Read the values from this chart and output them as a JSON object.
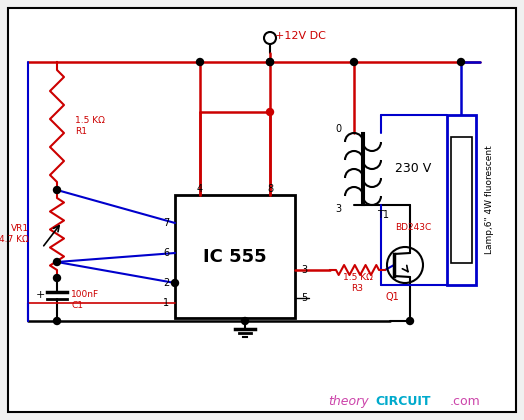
{
  "bg": "#f0f0f0",
  "white": "#ffffff",
  "red": "#cc0000",
  "blue": "#0000cc",
  "dark_red": "#800000",
  "black": "#000000",
  "magenta": "#cc44aa",
  "cyan": "#00aacc",
  "r1_label": "1.5 KΩ\nR1",
  "r3_label": "1.5 KΩ\nR3",
  "vr1_label": "VR1\n4.7 KΩ",
  "c1_label": "100nF\nC1",
  "ic_label": "IC 555",
  "lamp_label": "Lamp,6\" 4W fluorescent",
  "v230": "230 V",
  "t1": "T1",
  "bd": "BD243C",
  "q1": "Q1",
  "pwr": "+12V DC",
  "theory": "theory",
  "circuit": "CIRCUIT",
  "com": ".com",
  "pin4": "4",
  "pin8": "8",
  "pin7": "7",
  "pin6": "6",
  "pin2": "2",
  "pin1": "1",
  "pin3": "3",
  "pin5": "5",
  "t1_0": "0",
  "t1_3": "3"
}
